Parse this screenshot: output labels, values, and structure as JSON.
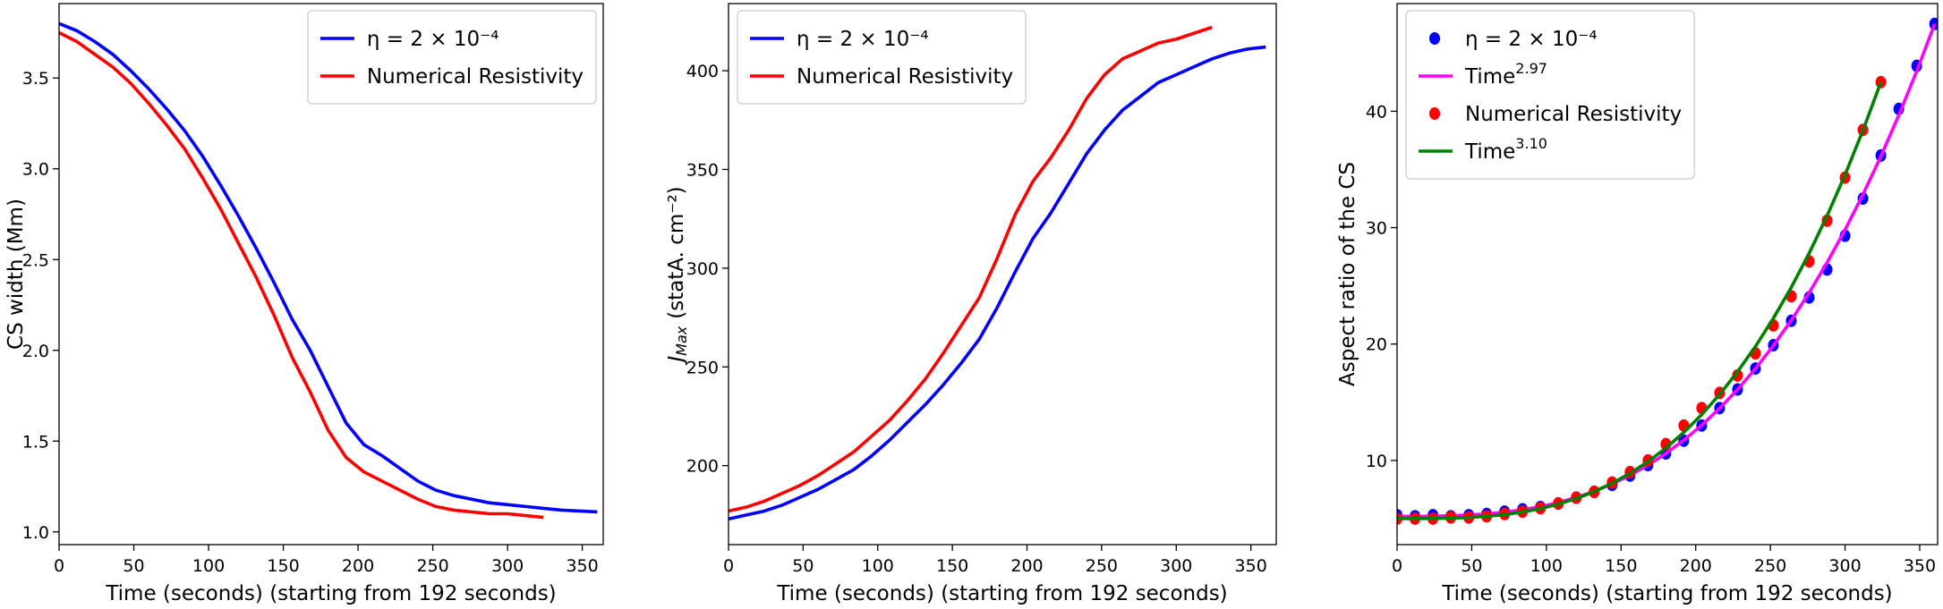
{
  "chart_data": [
    {
      "type": "line",
      "xlabel": "Time (seconds) (starting from 192 seconds)",
      "ylabel": "CS width (Mm)",
      "xlim": [
        0,
        364
      ],
      "ylim": [
        0.93,
        3.91
      ],
      "xticks": [
        0,
        50,
        100,
        150,
        200,
        250,
        300,
        350
      ],
      "yticks": [
        {
          "value": 1,
          "label": "1.0"
        },
        1.5,
        {
          "value": 2,
          "label": "2.0"
        },
        2.5,
        {
          "value": 3,
          "label": "3.0"
        },
        3.5
      ],
      "grid": false,
      "legend": "upper right",
      "series": [
        {
          "name": "η = 2 × 10⁻⁴",
          "color": "#0000ff",
          "x": [
            0,
            12,
            24,
            36,
            48,
            60,
            72,
            84,
            96,
            108,
            120,
            132,
            144,
            156,
            168,
            180,
            192,
            204,
            216,
            228,
            240,
            252,
            264,
            276,
            288,
            300,
            312,
            324,
            336,
            348,
            360
          ],
          "values": [
            3.8,
            3.76,
            3.7,
            3.63,
            3.54,
            3.44,
            3.33,
            3.21,
            3.07,
            2.91,
            2.74,
            2.56,
            2.37,
            2.17,
            2.0,
            1.8,
            1.6,
            1.48,
            1.42,
            1.35,
            1.28,
            1.23,
            1.2,
            1.18,
            1.16,
            1.15,
            1.14,
            1.13,
            1.12,
            1.115,
            1.11
          ]
        },
        {
          "name": "Numerical Resistivity",
          "color": "#ff0000",
          "x": [
            0,
            12,
            24,
            36,
            48,
            60,
            72,
            84,
            96,
            108,
            120,
            132,
            144,
            156,
            168,
            180,
            192,
            204,
            216,
            228,
            240,
            252,
            264,
            276,
            288,
            300,
            312,
            324
          ],
          "values": [
            3.75,
            3.7,
            3.63,
            3.56,
            3.47,
            3.36,
            3.24,
            3.11,
            2.95,
            2.78,
            2.59,
            2.4,
            2.19,
            1.96,
            1.77,
            1.56,
            1.41,
            1.33,
            1.28,
            1.23,
            1.18,
            1.14,
            1.12,
            1.11,
            1.1,
            1.1,
            1.09,
            1.08
          ]
        }
      ]
    },
    {
      "type": "line",
      "xlabel": "Time (seconds) (starting from 192 seconds)",
      "ylabel": "J",
      "ylabel_sub": "Max",
      "ylabel_tail": "(statA. cm⁻²)",
      "xlim": [
        0,
        367
      ],
      "ylim": [
        160,
        434
      ],
      "xticks": [
        0,
        50,
        100,
        150,
        200,
        250,
        300,
        350
      ],
      "yticks": [
        200,
        250,
        300,
        350,
        400
      ],
      "grid": false,
      "legend": "upper left",
      "series": [
        {
          "name": "η = 2 × 10⁻⁴",
          "color": "#0000ff",
          "x": [
            0,
            12,
            24,
            36,
            48,
            60,
            72,
            84,
            96,
            108,
            120,
            132,
            144,
            156,
            168,
            180,
            192,
            204,
            216,
            228,
            240,
            252,
            264,
            276,
            288,
            300,
            312,
            324,
            336,
            348,
            360
          ],
          "values": [
            173,
            175,
            177,
            180,
            184,
            188,
            193,
            198,
            205,
            213,
            222,
            231,
            241,
            252,
            264,
            280,
            298,
            315,
            328,
            343,
            358,
            370,
            380,
            387,
            394,
            398,
            402,
            406,
            409,
            411,
            412
          ]
        },
        {
          "name": "Numerical Resistivity",
          "color": "#ff0000",
          "x": [
            0,
            12,
            24,
            36,
            48,
            60,
            72,
            84,
            96,
            108,
            120,
            132,
            144,
            156,
            168,
            180,
            192,
            204,
            216,
            228,
            240,
            252,
            264,
            276,
            288,
            300,
            312,
            324
          ],
          "values": [
            177,
            179,
            182,
            186,
            190,
            195,
            201,
            207,
            215,
            223,
            233,
            244,
            257,
            271,
            285,
            305,
            327,
            344,
            356,
            370,
            386,
            398,
            406,
            410,
            414,
            416,
            419,
            422
          ]
        }
      ]
    },
    {
      "type": "scatter",
      "xlabel": "Time (seconds) (starting from 192 seconds)",
      "ylabel": "Aspect ratio of the CS",
      "xlim": [
        0,
        362
      ],
      "ylim": [
        2.77,
        49.25
      ],
      "xticks": [
        0,
        50,
        100,
        150,
        200,
        250,
        300,
        350
      ],
      "yticks": [
        10,
        20,
        30,
        40
      ],
      "grid": false,
      "legend": "upper left",
      "series": [
        {
          "name": "η = 2 × 10⁻⁴",
          "type": "scatter",
          "color": "#0000ff",
          "x": [
            0,
            12,
            24,
            36,
            48,
            60,
            72,
            84,
            96,
            108,
            120,
            132,
            144,
            156,
            168,
            180,
            192,
            204,
            216,
            228,
            240,
            252,
            264,
            276,
            288,
            300,
            312,
            324,
            336,
            348,
            360
          ],
          "values": [
            5.3,
            5.2,
            5.3,
            5.2,
            5.3,
            5.4,
            5.6,
            5.8,
            6.0,
            6.3,
            6.8,
            7.3,
            7.9,
            8.7,
            9.6,
            10.6,
            11.7,
            13.0,
            14.5,
            16.1,
            17.9,
            19.9,
            22.0,
            24.0,
            26.4,
            29.3,
            32.5,
            36.2,
            40.2,
            43.9,
            47.5
          ]
        },
        {
          "name": "Time",
          "exponent": "2.97",
          "type": "line",
          "color": "#ff00ff",
          "x": [
            0,
            12,
            24,
            36,
            48,
            60,
            72,
            84,
            96,
            108,
            120,
            132,
            144,
            156,
            168,
            180,
            192,
            204,
            216,
            228,
            240,
            252,
            264,
            276,
            288,
            300,
            312,
            324,
            336,
            348,
            360
          ],
          "values": [
            5.2,
            5.2,
            5.21,
            5.25,
            5.31,
            5.41,
            5.56,
            5.76,
            6.03,
            6.38,
            6.82,
            7.35,
            7.98,
            8.73,
            9.59,
            10.6,
            11.74,
            13.03,
            14.48,
            16.09,
            17.89,
            19.87,
            22.04,
            24.42,
            27.01,
            29.81,
            32.86,
            36.13,
            39.66,
            43.45,
            47.5
          ]
        },
        {
          "name": "Numerical Resistivity",
          "type": "scatter",
          "color": "#ff0000",
          "x": [
            0,
            12,
            24,
            36,
            48,
            60,
            72,
            84,
            96,
            108,
            120,
            132,
            144,
            156,
            168,
            180,
            192,
            204,
            216,
            228,
            240,
            252,
            264,
            276,
            288,
            300,
            312,
            324
          ],
          "values": [
            5.0,
            5.0,
            5.0,
            5.1,
            5.1,
            5.2,
            5.4,
            5.6,
            5.9,
            6.3,
            6.8,
            7.3,
            8.1,
            9.0,
            10.0,
            11.4,
            13.0,
            14.5,
            15.8,
            17.3,
            19.2,
            21.6,
            24.1,
            27.1,
            30.6,
            34.3,
            38.4,
            42.5
          ]
        },
        {
          "name": "Time",
          "exponent": "3.10",
          "type": "line",
          "color": "#008000",
          "x": [
            0,
            12,
            24,
            36,
            48,
            60,
            72,
            84,
            96,
            108,
            120,
            132,
            144,
            156,
            168,
            180,
            192,
            204,
            216,
            228,
            240,
            252,
            264,
            276,
            288,
            300,
            312,
            324
          ],
          "values": [
            5.0,
            5.0,
            5.01,
            5.04,
            5.1,
            5.2,
            5.35,
            5.57,
            5.86,
            6.25,
            6.73,
            7.32,
            8.04,
            8.89,
            9.89,
            11.06,
            12.41,
            13.94,
            15.67,
            17.62,
            19.79,
            22.21,
            24.87,
            27.81,
            31.03,
            34.54,
            38.36,
            42.5
          ]
        }
      ]
    }
  ]
}
